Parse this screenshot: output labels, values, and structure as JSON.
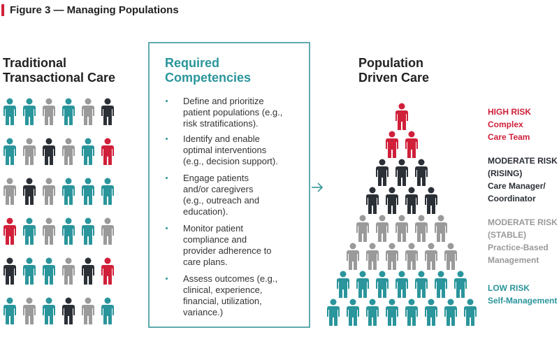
{
  "header": {
    "title": "Figure 3 — Managing Populations"
  },
  "left": {
    "title_lines": [
      "Traditional",
      "Transactional Care"
    ]
  },
  "box": {
    "title_lines": [
      "Required",
      "Competencies"
    ],
    "items": [
      [
        "Define and prioritize",
        "patient populations (e.g.,",
        "risk stratifications)."
      ],
      [
        "Identify and enable",
        "optimal interventions",
        "(e.g., decision support)."
      ],
      [
        "Engage patients",
        "and/or caregivers",
        "(e.g., outreach and",
        "education)."
      ],
      [
        "Monitor patient",
        "compliance and",
        "provider adherence to",
        "care plans."
      ],
      [
        "Assess outcomes (e.g.,",
        "clinical, experience,",
        "financial, utilization,",
        "variance.)"
      ]
    ]
  },
  "right": {
    "title_lines": [
      "Population",
      "Driven Care"
    ],
    "tiers": [
      {
        "color": "#d0203a",
        "lines": [
          "HIGH RISK",
          "Complex",
          "Care Team"
        ]
      },
      {
        "color": "#2b2f36",
        "lines": [
          "MODERATE RISK",
          "(RISING)",
          "Care Manager/",
          "Coordinator"
        ]
      },
      {
        "color": "#9a9a9a",
        "lines": [
          "MODERATE RISK",
          "(STABLE)",
          "Practice-Based",
          "Management"
        ]
      },
      {
        "color": "#2a959b",
        "lines": [
          "LOW RISK",
          "Self-Management"
        ]
      }
    ]
  }
}
